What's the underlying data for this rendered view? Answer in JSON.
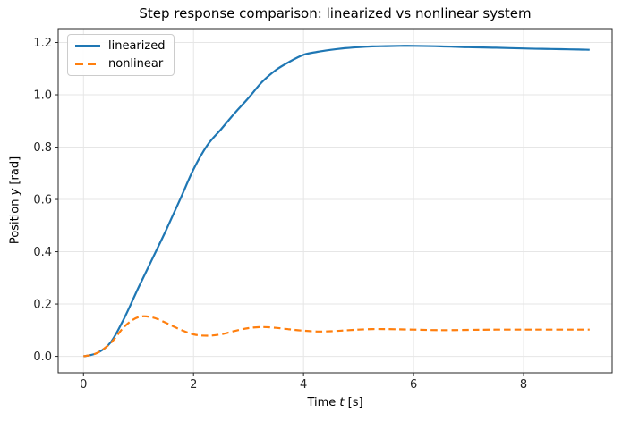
{
  "figure": {
    "title": "Step response comparison: linearized vs nonlinear system",
    "xlabel_parts": {
      "prefix": "Time ",
      "var": "t",
      "suffix": " [s]"
    },
    "ylabel_parts": {
      "prefix": "Position ",
      "var": "y",
      "suffix": " [rad]"
    },
    "background_color": "#ffffff",
    "spine_color": "#262626",
    "grid_color": "#e6e6e6",
    "tick_label_color": "#262626"
  },
  "chart_data": {
    "type": "line",
    "title": "Step response comparison: linearized vs nonlinear system",
    "xlabel": "Time t [s]",
    "ylabel": "Position y [rad]",
    "grid": true,
    "legend_position": "upper left",
    "xlim": [
      -0.46,
      9.61
    ],
    "ylim": [
      -0.063,
      1.253
    ],
    "x_ticks": [
      0,
      2,
      4,
      6,
      8
    ],
    "x_tick_labels": [
      "0",
      "2",
      "4",
      "6",
      "8"
    ],
    "y_ticks": [
      0.0,
      0.2,
      0.4,
      0.6,
      0.8,
      1.0,
      1.2
    ],
    "y_tick_labels": [
      "0.0",
      "0.2",
      "0.4",
      "0.6",
      "0.8",
      "1.0",
      "1.2"
    ],
    "x": [
      0,
      0.25,
      0.5,
      0.75,
      1,
      1.25,
      1.5,
      1.75,
      2,
      2.25,
      2.5,
      2.75,
      3,
      3.25,
      3.5,
      3.75,
      4,
      4.25,
      4.5,
      4.75,
      5,
      5.25,
      5.5,
      5.75,
      6,
      6.5,
      7,
      7.5,
      8,
      8.5,
      9,
      9.2
    ],
    "series": [
      {
        "name": "linearized",
        "color": "#1f77b4",
        "style": "solid",
        "values": [
          0,
          0.013,
          0.055,
          0.15,
          0.263,
          0.372,
          0.482,
          0.597,
          0.715,
          0.807,
          0.868,
          0.93,
          0.988,
          1.05,
          1.095,
          1.127,
          1.153,
          1.164,
          1.172,
          1.178,
          1.182,
          1.185,
          1.186,
          1.187,
          1.187,
          1.185,
          1.182,
          1.18,
          1.177,
          1.175,
          1.173,
          1.172
        ]
      },
      {
        "name": "nonlinear",
        "color": "#ff7f0e",
        "style": "dashed",
        "values": [
          0,
          0.013,
          0.052,
          0.115,
          0.15,
          0.149,
          0.128,
          0.103,
          0.084,
          0.079,
          0.084,
          0.097,
          0.108,
          0.112,
          0.109,
          0.103,
          0.098,
          0.095,
          0.096,
          0.099,
          0.102,
          0.104,
          0.104,
          0.103,
          0.102,
          0.1,
          0.101,
          0.102,
          0.102,
          0.102,
          0.102,
          0.102
        ]
      }
    ]
  }
}
